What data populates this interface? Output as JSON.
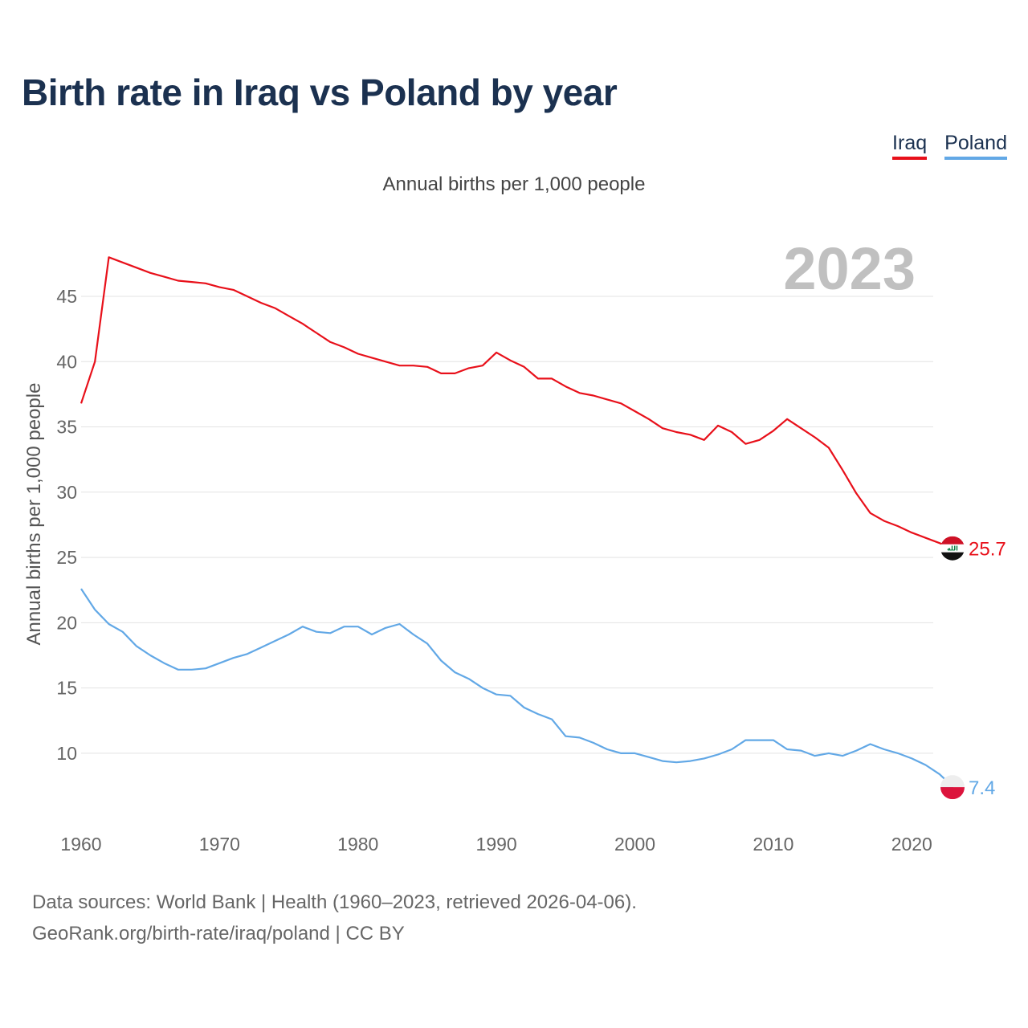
{
  "page": {
    "title": "Birth rate in Iraq vs Poland by year",
    "subtitle": "Annual births per 1,000 people",
    "footer_line1": "Data sources: World Bank | Health (1960–2023, retrieved 2026-04-06).",
    "footer_line2": "GeoRank.org/birth-rate/iraq/poland | CC BY"
  },
  "legend": [
    {
      "label": "Iraq",
      "color": "#e8101a"
    },
    {
      "label": "Poland",
      "color": "#62a8e6"
    }
  ],
  "chart_data": {
    "type": "line",
    "title": "Birth rate in Iraq vs Poland by year",
    "subtitle": "Annual births per 1,000 people",
    "xlabel": "",
    "ylabel": "Annual births per 1,000 people",
    "xlim": [
      1960,
      2023
    ],
    "ylim": [
      5.5,
      49
    ],
    "x_ticks": [
      1960,
      1970,
      1980,
      1990,
      2000,
      2010,
      2020
    ],
    "y_ticks": [
      10,
      15,
      20,
      25,
      30,
      35,
      40,
      45
    ],
    "grid": true,
    "legend_position": "top-right",
    "year_label": "2023",
    "x": [
      1960,
      1961,
      1962,
      1963,
      1964,
      1965,
      1966,
      1967,
      1968,
      1969,
      1970,
      1971,
      1972,
      1973,
      1974,
      1975,
      1976,
      1977,
      1978,
      1979,
      1980,
      1981,
      1982,
      1983,
      1984,
      1985,
      1986,
      1987,
      1988,
      1989,
      1990,
      1991,
      1992,
      1993,
      1994,
      1995,
      1996,
      1997,
      1998,
      1999,
      2000,
      2001,
      2002,
      2003,
      2004,
      2005,
      2006,
      2007,
      2008,
      2009,
      2010,
      2011,
      2012,
      2013,
      2014,
      2015,
      2016,
      2017,
      2018,
      2019,
      2020,
      2021,
      2022,
      2023
    ],
    "series": [
      {
        "name": "Iraq",
        "color": "#e8101a",
        "end_label": "25.7",
        "values": [
          36.8,
          40.0,
          48.0,
          47.6,
          47.2,
          46.8,
          46.5,
          46.2,
          46.1,
          46.0,
          45.7,
          45.5,
          45.0,
          44.5,
          44.1,
          43.5,
          42.9,
          42.2,
          41.5,
          41.1,
          40.6,
          40.3,
          40.0,
          39.7,
          39.7,
          39.6,
          39.1,
          39.1,
          39.5,
          39.7,
          40.7,
          40.1,
          39.6,
          38.7,
          38.7,
          38.1,
          37.6,
          37.4,
          37.1,
          36.8,
          36.2,
          35.6,
          34.9,
          34.6,
          34.4,
          34.0,
          35.1,
          34.6,
          33.7,
          34.0,
          34.7,
          35.6,
          34.9,
          34.2,
          33.4,
          31.7,
          29.9,
          28.4,
          27.8,
          27.4,
          26.9,
          26.5,
          26.1,
          25.7
        ]
      },
      {
        "name": "Poland",
        "color": "#62a8e6",
        "end_label": "7.4",
        "values": [
          22.6,
          21.0,
          19.9,
          19.3,
          18.2,
          17.5,
          16.9,
          16.4,
          16.4,
          16.5,
          16.9,
          17.3,
          17.6,
          18.1,
          18.6,
          19.1,
          19.7,
          19.3,
          19.2,
          19.7,
          19.7,
          19.1,
          19.6,
          19.9,
          19.1,
          18.4,
          17.1,
          16.2,
          15.7,
          15.0,
          14.5,
          14.4,
          13.5,
          13.0,
          12.6,
          11.3,
          11.2,
          10.8,
          10.3,
          10.0,
          10.0,
          9.7,
          9.4,
          9.3,
          9.4,
          9.6,
          9.9,
          10.3,
          11.0,
          11.0,
          11.0,
          10.3,
          10.2,
          9.8,
          10.0,
          9.8,
          10.2,
          10.7,
          10.3,
          10.0,
          9.6,
          9.1,
          8.4,
          7.4
        ]
      }
    ]
  }
}
